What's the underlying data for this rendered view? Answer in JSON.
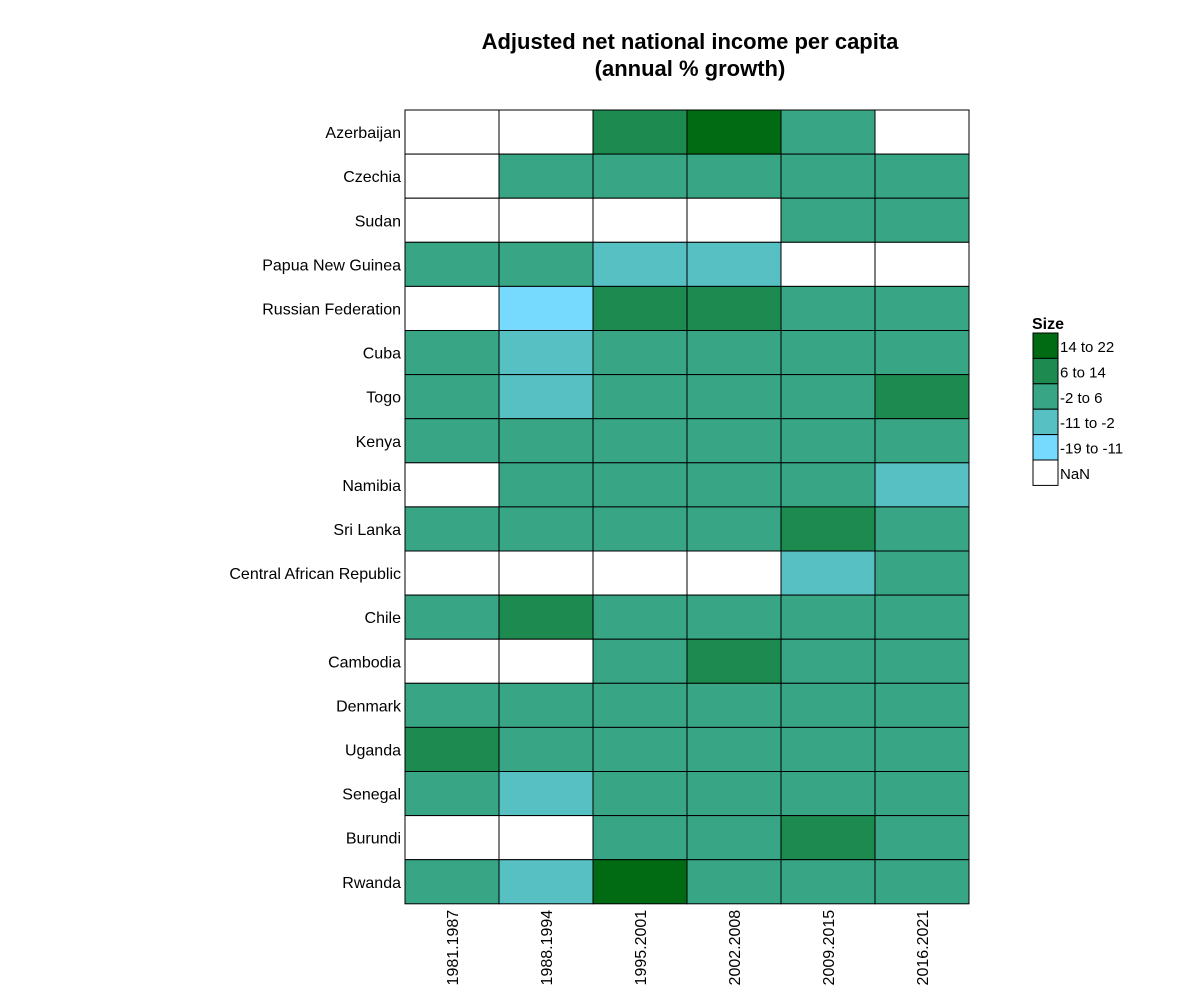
{
  "chart_data": {
    "type": "heatmap",
    "title_lines": [
      "Adjusted net national income per capita",
      "(annual % growth)"
    ],
    "xlabel": "",
    "ylabel": "",
    "columns": [
      "1981.1987",
      "1988.1994",
      "1995.2001",
      "2002.2008",
      "2009.2015",
      "2016.2021"
    ],
    "rows": [
      "Azerbaijan",
      "Czechia",
      "Sudan",
      "Papua New Guinea",
      "Russian Federation",
      "Cuba",
      "Togo",
      "Kenya",
      "Namibia",
      "Sri Lanka",
      "Central African Republic",
      "Chile",
      "Cambodia",
      "Denmark",
      "Uganda",
      "Senegal",
      "Burundi",
      "Rwanda"
    ],
    "legend": {
      "title": "Size",
      "position": "right",
      "bins": [
        {
          "label": "14 to 22",
          "color": "#006b13"
        },
        {
          "label": "6 to 14",
          "color": "#1d8a4f"
        },
        {
          "label": "-2 to 6",
          "color": "#38a585"
        },
        {
          "label": "-11 to -2",
          "color": "#57c0c3"
        },
        {
          "label": "-19 to -11",
          "color": "#76daff"
        },
        {
          "label": "NaN",
          "color": "#ffffff"
        }
      ]
    },
    "cells": [
      [
        "NaN",
        "NaN",
        "6 to 14",
        "14 to 22",
        "-2 to 6",
        "NaN"
      ],
      [
        "NaN",
        "-2 to 6",
        "-2 to 6",
        "-2 to 6",
        "-2 to 6",
        "-2 to 6"
      ],
      [
        "NaN",
        "NaN",
        "NaN",
        "NaN",
        "-2 to 6",
        "-2 to 6"
      ],
      [
        "-2 to 6",
        "-2 to 6",
        "-11 to -2",
        "-11 to -2",
        "NaN",
        "NaN"
      ],
      [
        "NaN",
        "-19 to -11",
        "6 to 14",
        "6 to 14",
        "-2 to 6",
        "-2 to 6"
      ],
      [
        "-2 to 6",
        "-11 to -2",
        "-2 to 6",
        "-2 to 6",
        "-2 to 6",
        "-2 to 6"
      ],
      [
        "-2 to 6",
        "-11 to -2",
        "-2 to 6",
        "-2 to 6",
        "-2 to 6",
        "6 to 14"
      ],
      [
        "-2 to 6",
        "-2 to 6",
        "-2 to 6",
        "-2 to 6",
        "-2 to 6",
        "-2 to 6"
      ],
      [
        "NaN",
        "-2 to 6",
        "-2 to 6",
        "-2 to 6",
        "-2 to 6",
        "-11 to -2"
      ],
      [
        "-2 to 6",
        "-2 to 6",
        "-2 to 6",
        "-2 to 6",
        "6 to 14",
        "-2 to 6"
      ],
      [
        "NaN",
        "NaN",
        "NaN",
        "NaN",
        "-11 to -2",
        "-2 to 6"
      ],
      [
        "-2 to 6",
        "6 to 14",
        "-2 to 6",
        "-2 to 6",
        "-2 to 6",
        "-2 to 6"
      ],
      [
        "NaN",
        "NaN",
        "-2 to 6",
        "6 to 14",
        "-2 to 6",
        "-2 to 6"
      ],
      [
        "-2 to 6",
        "-2 to 6",
        "-2 to 6",
        "-2 to 6",
        "-2 to 6",
        "-2 to 6"
      ],
      [
        "6 to 14",
        "-2 to 6",
        "-2 to 6",
        "-2 to 6",
        "-2 to 6",
        "-2 to 6"
      ],
      [
        "-2 to 6",
        "-11 to -2",
        "-2 to 6",
        "-2 to 6",
        "-2 to 6",
        "-2 to 6"
      ],
      [
        "NaN",
        "NaN",
        "-2 to 6",
        "-2 to 6",
        "6 to 14",
        "-2 to 6"
      ],
      [
        "-2 to 6",
        "-11 to -2",
        "14 to 22",
        "-2 to 6",
        "-2 to 6",
        "-2 to 6"
      ]
    ]
  }
}
